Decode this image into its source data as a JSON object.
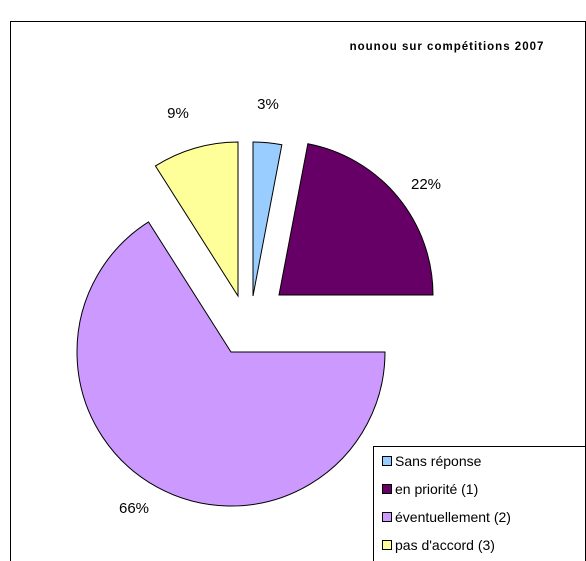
{
  "chart_data": {
    "type": "pie",
    "title": "nounou sur compétitions 2007",
    "slices": [
      {
        "label": "Sans réponse",
        "value": 3,
        "value_label": "3%",
        "color": "#99ccff"
      },
      {
        "label": "en priorité (1)",
        "value": 22,
        "value_label": "22%",
        "color": "#660066"
      },
      {
        "label": "éventuellement (2)",
        "value": 66,
        "value_label": "66%",
        "color": "#cc99ff"
      },
      {
        "label": "pas d'accord (3)",
        "value": 9,
        "value_label": "9%",
        "color": "#ffff99"
      }
    ],
    "legend": {
      "placement": "bottom-right",
      "entries": [
        "Sans réponse",
        "en priorité (1)",
        "éventuellement (2)",
        "pas d'accord (3)"
      ]
    },
    "exploded": true
  }
}
